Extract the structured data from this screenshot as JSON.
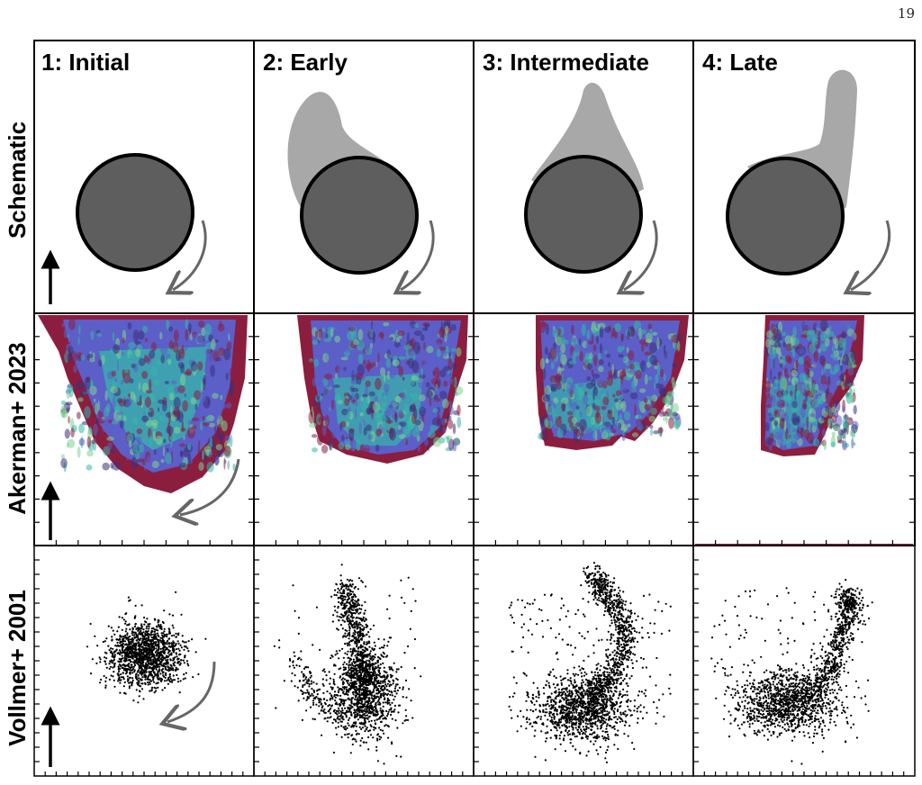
{
  "page": {
    "number": "19"
  },
  "columns": [
    {
      "label": "1: Initial"
    },
    {
      "label": "2: Early"
    },
    {
      "label": "3: Intermediate"
    },
    {
      "label": "4: Late"
    }
  ],
  "rows": [
    {
      "label": "Schematic"
    },
    {
      "label": "Akerman+ 2023"
    },
    {
      "label": "Vollmer+ 2001"
    }
  ],
  "colors": {
    "galaxy_disk": "#5e5e5e",
    "stripped_gas": "#a8a8a8",
    "arrow": "#666666",
    "sim_outer": "#8b1e3f",
    "sim_mid": "#5b5fc7",
    "sim_inner": "#36b6a9",
    "particles": "#000000"
  }
}
